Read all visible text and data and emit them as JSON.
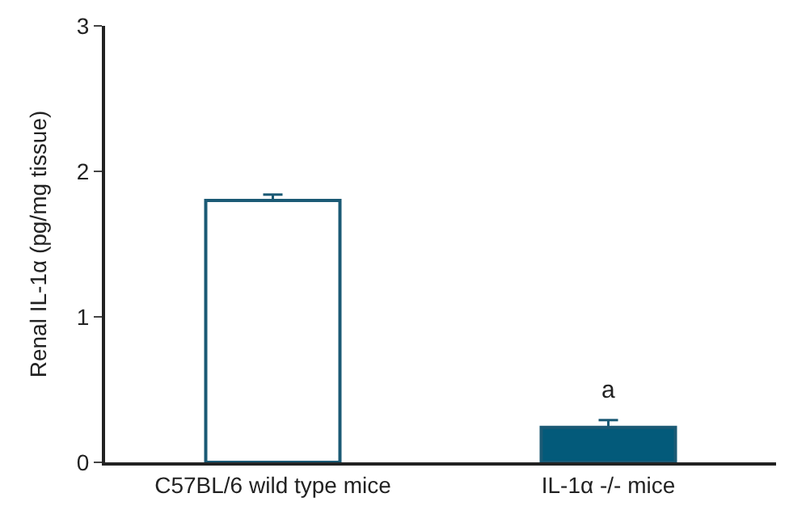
{
  "chart_data": {
    "type": "bar",
    "ylabel": "Renal IL-1α (pg/mg tissue)",
    "categories": [
      "C57BL/6 wild type mice",
      "IL-1α -/- mice"
    ],
    "values": [
      1.8,
      0.24
    ],
    "errors": [
      [
        1.8,
        1.84
      ],
      [
        0.24,
        0.29
      ]
    ],
    "colors": [
      "#ffffff",
      "#035a7a"
    ],
    "ylim": [
      0,
      3
    ],
    "yticks": [
      0,
      1,
      2,
      3
    ],
    "annotations": [
      {
        "text": "a",
        "x": "IL-1α -/- mice",
        "y": 0.29
      }
    ]
  }
}
